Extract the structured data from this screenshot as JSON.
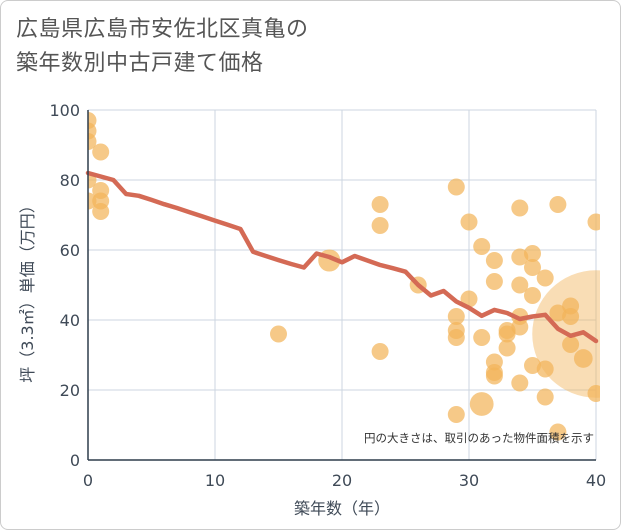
{
  "title": {
    "line1": "広島県広島市安佐北区真亀の",
    "line2": "築年数別中古戸建て価格"
  },
  "note": "円の大きさは、取引のあった物件面積を示す",
  "colors": {
    "bubble": "#f2b45a",
    "line": "#d46a55",
    "grid": "#ccd6e0",
    "axis": "#2f3d4c"
  },
  "chart_data": {
    "type": "scatter",
    "xlabel": "築年数（年）",
    "ylabel": "坪（3.3㎡）単価（万円）",
    "xlim": [
      0,
      40
    ],
    "ylim": [
      0,
      100
    ],
    "x_ticks": [
      "0",
      "10",
      "20",
      "30",
      "40"
    ],
    "y_ticks": [
      "0",
      "20",
      "40",
      "60",
      "80",
      "100"
    ],
    "grid": true,
    "series": [
      {
        "type": "bubble",
        "points": [
          {
            "x": 0,
            "y": 97,
            "s": 1
          },
          {
            "x": 0,
            "y": 94,
            "s": 1
          },
          {
            "x": 0,
            "y": 91,
            "s": 1
          },
          {
            "x": 0,
            "y": 80,
            "s": 1
          },
          {
            "x": 0,
            "y": 74,
            "s": 1
          },
          {
            "x": 1,
            "y": 88,
            "s": 1
          },
          {
            "x": 1,
            "y": 77,
            "s": 1
          },
          {
            "x": 1,
            "y": 74,
            "s": 1
          },
          {
            "x": 1,
            "y": 71,
            "s": 1
          },
          {
            "x": 15,
            "y": 36,
            "s": 1
          },
          {
            "x": 19,
            "y": 57,
            "s": 1.3
          },
          {
            "x": 23,
            "y": 73,
            "s": 1
          },
          {
            "x": 23,
            "y": 67,
            "s": 1
          },
          {
            "x": 23,
            "y": 31,
            "s": 1
          },
          {
            "x": 26,
            "y": 50,
            "s": 1
          },
          {
            "x": 29,
            "y": 78,
            "s": 1
          },
          {
            "x": 29,
            "y": 41,
            "s": 1
          },
          {
            "x": 29,
            "y": 37,
            "s": 1
          },
          {
            "x": 29,
            "y": 35,
            "s": 1
          },
          {
            "x": 29,
            "y": 13,
            "s": 1
          },
          {
            "x": 30,
            "y": 68,
            "s": 1
          },
          {
            "x": 30,
            "y": 46,
            "s": 1
          },
          {
            "x": 31,
            "y": 61,
            "s": 1
          },
          {
            "x": 31,
            "y": 35,
            "s": 1
          },
          {
            "x": 31,
            "y": 16,
            "s": 1.4
          },
          {
            "x": 32,
            "y": 57,
            "s": 1
          },
          {
            "x": 32,
            "y": 51,
            "s": 1
          },
          {
            "x": 32,
            "y": 28,
            "s": 1
          },
          {
            "x": 32,
            "y": 25,
            "s": 1
          },
          {
            "x": 32,
            "y": 24,
            "s": 1
          },
          {
            "x": 33,
            "y": 37,
            "s": 1
          },
          {
            "x": 33,
            "y": 36,
            "s": 1
          },
          {
            "x": 33,
            "y": 32,
            "s": 1
          },
          {
            "x": 34,
            "y": 72,
            "s": 1
          },
          {
            "x": 34,
            "y": 58,
            "s": 1
          },
          {
            "x": 34,
            "y": 50,
            "s": 1
          },
          {
            "x": 34,
            "y": 41,
            "s": 1
          },
          {
            "x": 34,
            "y": 38,
            "s": 1
          },
          {
            "x": 34,
            "y": 22,
            "s": 1
          },
          {
            "x": 35,
            "y": 59,
            "s": 1
          },
          {
            "x": 35,
            "y": 55,
            "s": 1
          },
          {
            "x": 35,
            "y": 47,
            "s": 1
          },
          {
            "x": 35,
            "y": 27,
            "s": 1
          },
          {
            "x": 36,
            "y": 52,
            "s": 1
          },
          {
            "x": 36,
            "y": 26,
            "s": 1
          },
          {
            "x": 36,
            "y": 18,
            "s": 1
          },
          {
            "x": 37,
            "y": 73,
            "s": 1
          },
          {
            "x": 37,
            "y": 42,
            "s": 1
          },
          {
            "x": 37,
            "y": 8,
            "s": 1
          },
          {
            "x": 38,
            "y": 44,
            "s": 1
          },
          {
            "x": 38,
            "y": 41,
            "s": 1
          },
          {
            "x": 38,
            "y": 33,
            "s": 1
          },
          {
            "x": 39,
            "y": 29,
            "s": 1.1
          },
          {
            "x": 40,
            "y": 68,
            "s": 1
          },
          {
            "x": 40,
            "y": 36,
            "s": 7.5
          },
          {
            "x": 40,
            "y": 19,
            "s": 1
          }
        ]
      },
      {
        "type": "line",
        "x": [
          0,
          1,
          2,
          3,
          4,
          5,
          6,
          7,
          8,
          9,
          10,
          11,
          12,
          13,
          14,
          15,
          16,
          17,
          18,
          19,
          20,
          21,
          22,
          23,
          24,
          25,
          26,
          27,
          28,
          29,
          30,
          31,
          32,
          33,
          34,
          35,
          36,
          37,
          38,
          39,
          40
        ],
        "y": [
          82,
          81,
          80,
          76,
          75.5,
          74.3,
          73.1,
          72,
          70.8,
          69.6,
          68.4,
          67.2,
          66,
          59.5,
          58.3,
          57.1,
          56,
          55,
          59,
          58,
          56.5,
          58.3,
          57,
          55.7,
          54.8,
          53.8,
          50,
          47,
          48.3,
          45.3,
          43.5,
          41.2,
          42.9,
          42,
          40.3,
          41,
          41.5,
          37.5,
          35.5,
          36.5,
          34
        ]
      }
    ]
  }
}
